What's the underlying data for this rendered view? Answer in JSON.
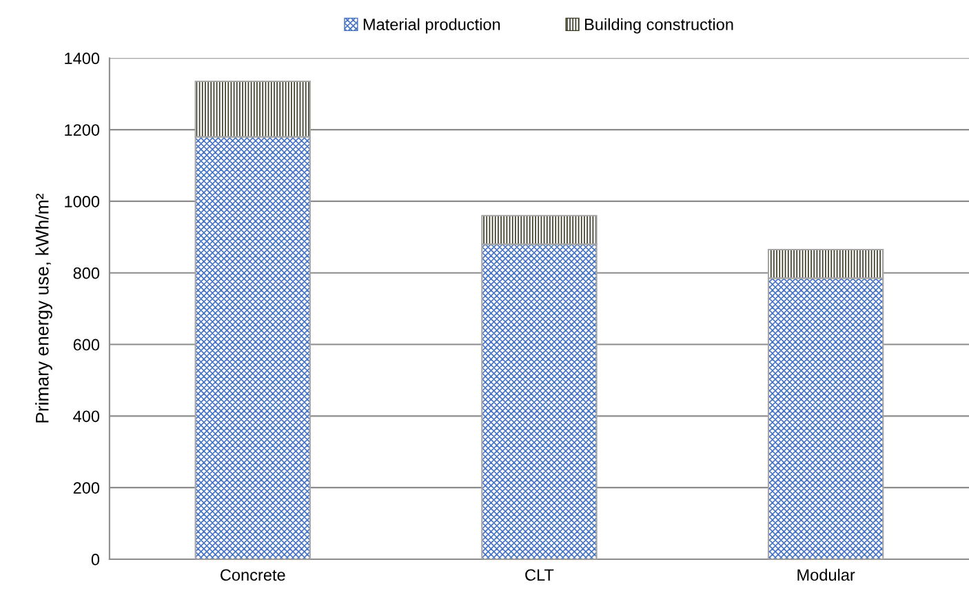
{
  "chart_data": {
    "type": "bar",
    "stacked": true,
    "ylabel": "Primary energy use, kWh/m²",
    "categories": [
      "Concrete",
      "CLT",
      "Modular"
    ],
    "series": [
      {
        "name": "Material production",
        "color": "#4472c4",
        "values": [
          1180,
          880,
          785
        ]
      },
      {
        "name": "Building construction",
        "color": "#3b3a24",
        "values": [
          155,
          80,
          80
        ]
      }
    ],
    "ylim": [
      0,
      1400
    ],
    "yticks": [
      0,
      200,
      400,
      600,
      800,
      1000,
      1200,
      1400
    ],
    "grid": "y",
    "legend": "top"
  }
}
